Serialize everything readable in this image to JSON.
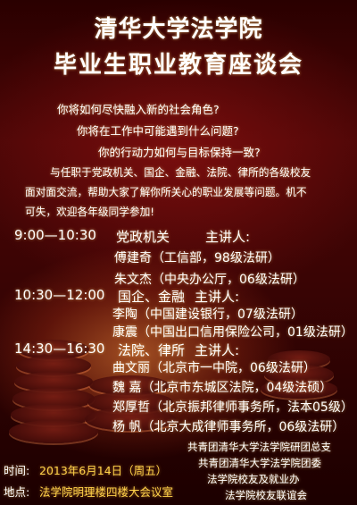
{
  "title_line1": "清华大学法学院",
  "title_line2": "毕业生职业教育座谈会",
  "questions": [
    "你将如何尽快融入新的社会角色?",
    "你将在工作中可能遇到什么问题?",
    "你的行动力如何与目标保持一致?"
  ],
  "intro_lines": [
    "与任职于党政机关、国企、金融、法院、律所的各级校友",
    "面对面交流，帮助大家了解你所关心的职业发展等问题。机不",
    "可失，欢迎各年级同学参加!"
  ],
  "sessions": [
    {
      "time": "9:00—10:30",
      "topic": "党政机关",
      "label": "主讲人:",
      "speakers": [
        "傅建奇（工信部，98级法研）",
        "朱文杰（中央办公厅，06级法研）"
      ]
    },
    {
      "time": "10:30—12:00",
      "topic": "国企、金融",
      "label": "主讲人:",
      "speakers": [
        "李陶（中国建设银行，07级法研）",
        "康震（中国出口信用保险公司，01级法研）"
      ]
    },
    {
      "time": "14:30—16:30",
      "topic": "法院、律所",
      "label": "主讲人:",
      "speakers": [
        "曲文丽（北京市一中院，06级法研）",
        "魏  嘉（北京市东城区法院，04级法硕）",
        "郑厚哲（北京振邦律师事务所，法本05级）",
        "杨  帆（北京大成律师事务所，06级法研）"
      ]
    }
  ],
  "organizers": [
    "共青团清华大学法学院研团总支",
    "共青团清华大学法学院团委",
    "法学院校友及就业办",
    "法学院校友联谊会"
  ],
  "date_label": "时间:",
  "date_value": "2013年6月14日（周五）",
  "place_label": "地点:",
  "place_value": "法学院明理楼四楼大会议室"
}
